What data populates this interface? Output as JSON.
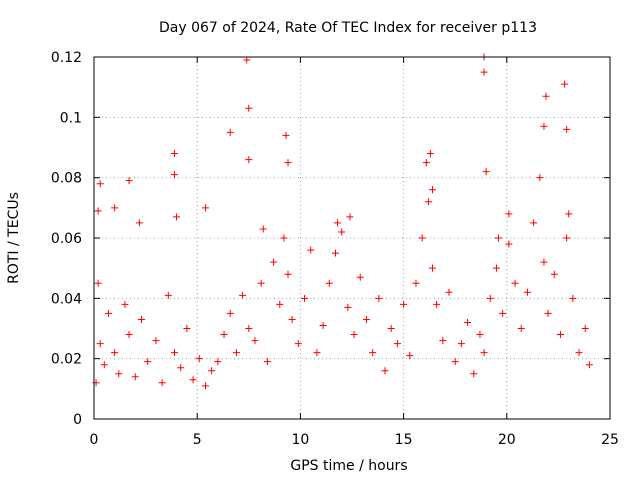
{
  "chart_data": {
    "type": "scatter",
    "title": "Day 067 of 2024, Rate Of TEC Index for receiver p113",
    "xlabel": "GPS time / hours",
    "ylabel": "ROTI / TECUs",
    "xlim": [
      0,
      25
    ],
    "ylim": [
      0,
      0.12
    ],
    "xticks": [
      0,
      5,
      10,
      15,
      20,
      25
    ],
    "yticks": [
      0,
      0.02,
      0.04,
      0.06,
      0.08,
      0.1,
      0.12
    ],
    "xtick_labels": [
      "0",
      "5",
      "10",
      "15",
      "20",
      "25"
    ],
    "ytick_labels": [
      "0",
      "0.02",
      "0.04",
      "0.06",
      "0.08",
      "0.1",
      "0.12"
    ],
    "grid": true,
    "marker": "+",
    "color": "#ff0000",
    "series": [
      {
        "x": [
          0.1,
          0.2,
          0.3,
          0.5,
          0.7,
          1.0,
          1.2,
          1.5,
          1.7,
          2.0,
          2.3,
          2.6,
          3.0,
          3.3,
          3.6,
          3.9,
          4.2,
          4.5,
          4.8,
          5.1,
          5.4,
          5.7,
          6.0,
          6.3,
          6.6,
          6.9,
          7.2,
          7.5,
          7.8,
          8.1,
          8.4,
          8.7,
          9.0,
          9.2,
          9.4,
          9.6,
          9.9,
          10.2,
          10.5,
          10.8,
          11.1,
          11.4,
          11.7,
          12.0,
          12.3,
          12.6,
          12.9,
          13.2,
          13.5,
          13.8,
          14.1,
          14.4,
          14.7,
          15.0,
          15.3,
          15.6,
          15.9,
          16.2,
          16.4,
          16.6,
          16.9,
          17.2,
          17.5,
          17.8,
          18.1,
          18.4,
          18.7,
          18.9,
          19.2,
          19.5,
          19.8,
          20.1,
          20.4,
          20.7,
          21.0,
          21.3,
          21.6,
          21.8,
          22.0,
          22.3,
          22.6,
          22.9,
          23.2,
          23.5,
          23.8,
          24.0,
          0.3,
          1.7,
          3.9,
          3.9,
          6.6,
          7.4,
          7.5,
          7.5,
          9.3,
          9.4,
          16.3,
          16.4,
          18.9,
          18.9,
          19.0,
          21.8,
          21.9,
          22.8,
          22.9,
          0.2,
          1.0,
          2.2,
          4.0,
          5.4,
          8.2,
          11.8,
          12.4,
          16.1,
          19.6,
          20.1,
          23.0
        ],
        "y": [
          0.012,
          0.045,
          0.025,
          0.018,
          0.035,
          0.022,
          0.015,
          0.038,
          0.028,
          0.014,
          0.033,
          0.019,
          0.026,
          0.012,
          0.041,
          0.022,
          0.017,
          0.03,
          0.013,
          0.02,
          0.011,
          0.016,
          0.019,
          0.028,
          0.035,
          0.022,
          0.041,
          0.03,
          0.026,
          0.045,
          0.019,
          0.052,
          0.038,
          0.06,
          0.048,
          0.033,
          0.025,
          0.04,
          0.056,
          0.022,
          0.031,
          0.045,
          0.055,
          0.062,
          0.037,
          0.028,
          0.047,
          0.033,
          0.022,
          0.04,
          0.016,
          0.03,
          0.025,
          0.038,
          0.021,
          0.045,
          0.06,
          0.072,
          0.05,
          0.038,
          0.026,
          0.042,
          0.019,
          0.025,
          0.032,
          0.015,
          0.028,
          0.022,
          0.04,
          0.05,
          0.035,
          0.058,
          0.045,
          0.03,
          0.042,
          0.065,
          0.08,
          0.052,
          0.035,
          0.048,
          0.028,
          0.06,
          0.04,
          0.022,
          0.03,
          0.018,
          0.078,
          0.079,
          0.088,
          0.081,
          0.095,
          0.119,
          0.103,
          0.086,
          0.094,
          0.085,
          0.088,
          0.076,
          0.12,
          0.115,
          0.082,
          0.097,
          0.107,
          0.111,
          0.096,
          0.069,
          0.07,
          0.065,
          0.067,
          0.07,
          0.063,
          0.065,
          0.067,
          0.085,
          0.06,
          0.068,
          0.068
        ]
      }
    ]
  }
}
